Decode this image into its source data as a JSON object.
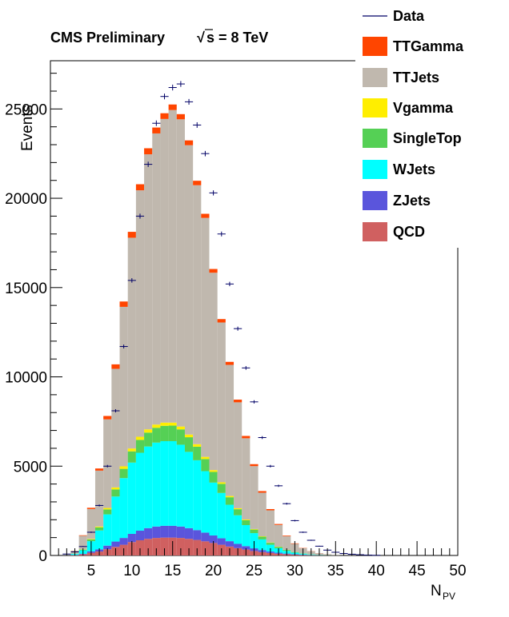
{
  "chart_data": {
    "type": "bar",
    "stacked": true,
    "title": "CMS Preliminary",
    "energy_label": "s = 8 TeV",
    "energy_sqrt": "√",
    "xlabel": "N",
    "xlabel_sub": "PV",
    "ylabel": "Events",
    "xlim": [
      0,
      50
    ],
    "ylim": [
      0,
      27700
    ],
    "x_ticks": [
      5,
      10,
      15,
      20,
      25,
      30,
      35,
      40,
      45,
      50
    ],
    "y_ticks": [
      0,
      5000,
      10000,
      15000,
      20000,
      25000
    ],
    "legend_position": "top-right",
    "bins": [
      3,
      4,
      5,
      6,
      7,
      8,
      9,
      10,
      11,
      12,
      13,
      14,
      15,
      16,
      17,
      18,
      19,
      20,
      21,
      22,
      23,
      24,
      25,
      26,
      27,
      28,
      29,
      30,
      31,
      32,
      33,
      34,
      35
    ],
    "series": [
      {
        "name": "QCD",
        "color": "#d06060",
        "values": [
          20,
          60,
          150,
          220,
          350,
          480,
          600,
          750,
          850,
          930,
          980,
          1000,
          1000,
          980,
          930,
          870,
          790,
          700,
          600,
          500,
          410,
          330,
          250,
          190,
          140,
          100,
          70,
          45,
          30,
          20,
          10,
          6,
          3
        ]
      },
      {
        "name": "ZJets",
        "color": "#5a55dc",
        "values": [
          10,
          30,
          80,
          120,
          200,
          300,
          380,
          460,
          540,
          600,
          640,
          660,
          660,
          640,
          600,
          550,
          490,
          420,
          360,
          300,
          240,
          190,
          150,
          110,
          80,
          55,
          35,
          22,
          14,
          8,
          5,
          2,
          1
        ]
      },
      {
        "name": "WJets",
        "color": "#00ffff",
        "values": [
          60,
          200,
          570,
          1060,
          1750,
          2520,
          3350,
          3990,
          4360,
          4570,
          4700,
          4740,
          4740,
          4580,
          4270,
          3910,
          3440,
          2960,
          2540,
          2040,
          1600,
          1180,
          850,
          600,
          380,
          250,
          155,
          93,
          56,
          32,
          15,
          7,
          4
        ]
      },
      {
        "name": "SingleTop",
        "color": "#55d055",
        "values": [
          10,
          40,
          100,
          170,
          280,
          400,
          520,
          630,
          720,
          780,
          830,
          860,
          870,
          860,
          820,
          760,
          680,
          600,
          510,
          420,
          340,
          270,
          200,
          150,
          110,
          75,
          50,
          32,
          20,
          12,
          7,
          4,
          2
        ]
      },
      {
        "name": "Vgamma",
        "color": "#ffee00",
        "values": [
          5,
          15,
          30,
          50,
          80,
          110,
          140,
          160,
          175,
          180,
          180,
          180,
          170,
          160,
          150,
          140,
          120,
          100,
          85,
          70,
          55,
          42,
          32,
          24,
          17,
          12,
          8,
          5,
          3,
          2,
          1,
          1,
          0
        ]
      },
      {
        "name": "TTJets",
        "color": "#c0b8ae",
        "values": [
          145,
          755,
          1670,
          3130,
          4960,
          6640,
          8930,
          11800,
          13800,
          15400,
          16300,
          17000,
          17500,
          17200,
          16200,
          14500,
          13380,
          11050,
          8950,
          7340,
          5930,
          4550,
          3520,
          2440,
          1800,
          1220,
          760,
          455,
          280,
          160,
          82,
          43,
          20
        ]
      },
      {
        "name": "TTGamma",
        "color": "#ff4500",
        "values": [
          10,
          30,
          70,
          120,
          190,
          250,
          300,
          330,
          340,
          340,
          330,
          320,
          310,
          290,
          270,
          250,
          230,
          210,
          190,
          170,
          150,
          130,
          110,
          90,
          70,
          50,
          35,
          25,
          15,
          10,
          6,
          4,
          2
        ]
      }
    ],
    "data": {
      "name": "Data",
      "color": "#000066",
      "x": [
        2,
        3,
        4,
        5,
        6,
        7,
        8,
        9,
        10,
        11,
        12,
        13,
        14,
        15,
        16,
        17,
        18,
        19,
        20,
        21,
        22,
        23,
        24,
        25,
        26,
        27,
        28,
        29,
        30,
        31,
        32,
        33,
        34,
        35,
        36,
        37,
        38,
        39,
        40
      ],
      "values": [
        80,
        200,
        500,
        1300,
        2800,
        5000,
        8100,
        11700,
        15400,
        19000,
        21900,
        24200,
        25700,
        26200,
        26400,
        25400,
        24100,
        22500,
        20300,
        18000,
        15200,
        12700,
        10500,
        8600,
        6600,
        5000,
        3900,
        2900,
        1950,
        1300,
        850,
        520,
        300,
        180,
        110,
        70,
        40,
        20,
        10
      ]
    },
    "legend": [
      "Data",
      "TTGamma",
      "TTJets",
      "Vgamma",
      "SingleTop",
      "WJets",
      "ZJets",
      "QCD"
    ]
  }
}
